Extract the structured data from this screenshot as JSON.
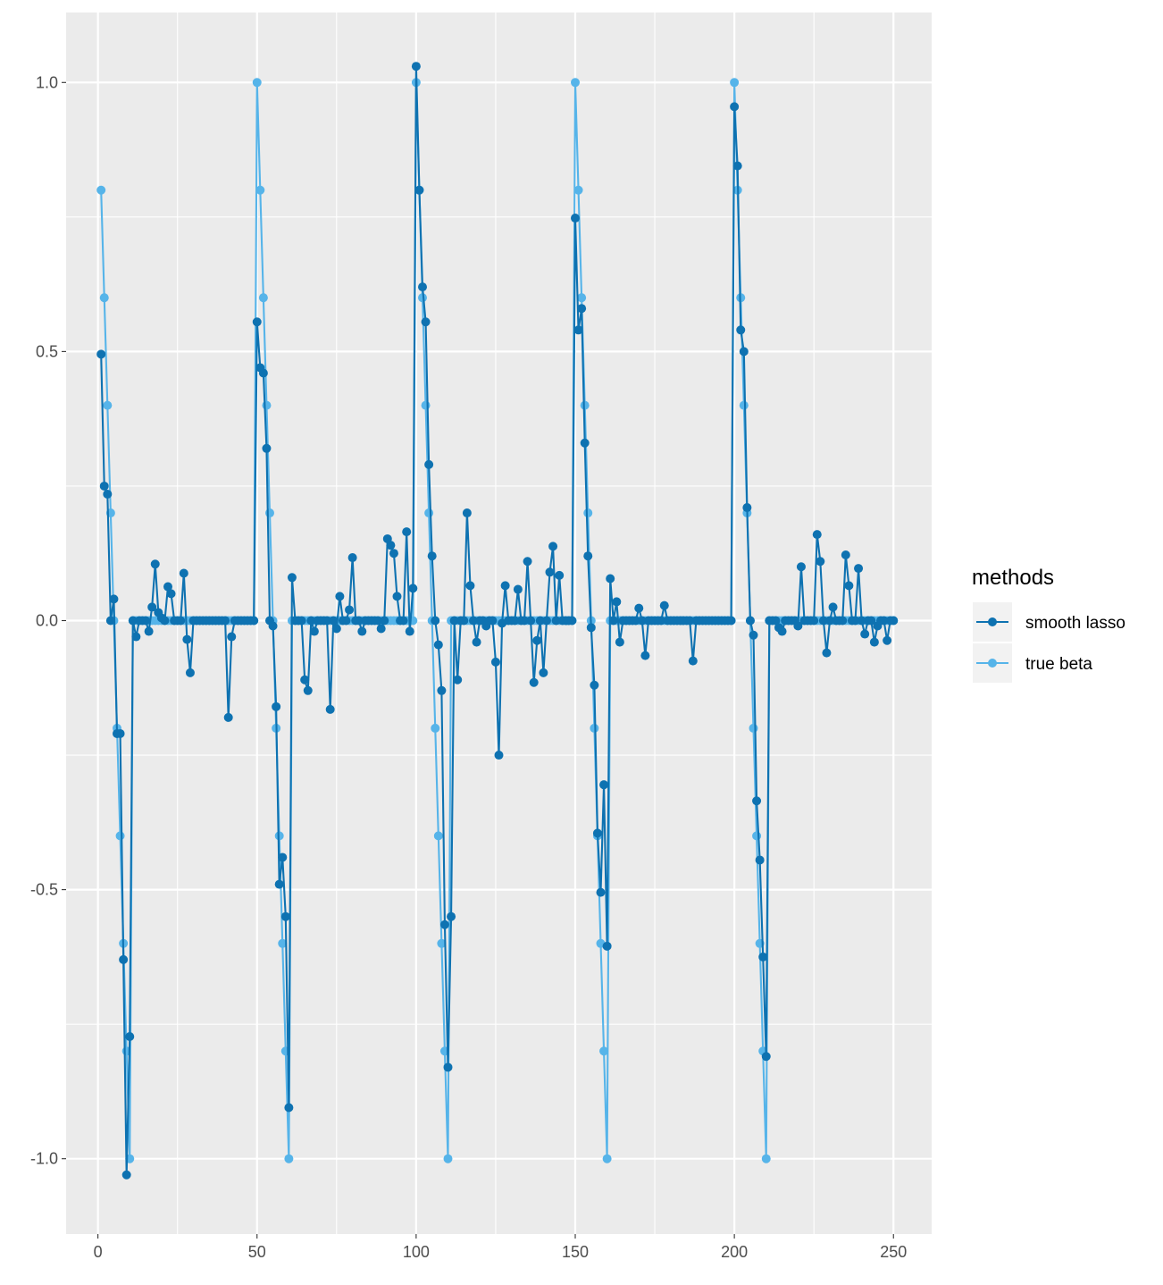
{
  "chart_data": {
    "type": "line",
    "title": "",
    "xlabel": "",
    "ylabel": "",
    "xlim": [
      -10,
      262
    ],
    "ylim": [
      -1.14,
      1.13
    ],
    "x_ticks": [
      0,
      50,
      100,
      150,
      200,
      250
    ],
    "x_tick_labels": [
      "0",
      "50",
      "100",
      "150",
      "200",
      "250"
    ],
    "y_ticks": [
      -1.0,
      -0.5,
      0.0,
      0.5,
      1.0
    ],
    "y_tick_labels": [
      "-1.0",
      "-0.5",
      "0.0",
      "0.5",
      "1.0"
    ],
    "grid": true,
    "legend": {
      "title": "methods",
      "position": "right"
    },
    "series": [
      {
        "name": "smooth lasso",
        "color": "#0E72B1",
        "nonzero": {
          "1": 0.495,
          "2": 0.25,
          "3": 0.235,
          "4": 0.0,
          "5": 0.04,
          "6": -0.21,
          "7": -0.21,
          "8": -0.63,
          "9": -1.03,
          "10": -0.773,
          "12": -0.03,
          "13": 0.0,
          "14": 0.0,
          "16": -0.02,
          "17": 0.025,
          "18": 0.105,
          "19": 0.015,
          "20": 0.005,
          "22": 0.063,
          "23": 0.05,
          "27": 0.088,
          "28": -0.035,
          "29": -0.097,
          "41": -0.18,
          "42": -0.03,
          "50": 0.555,
          "51": 0.47,
          "52": 0.46,
          "53": 0.32,
          "54": 0.0,
          "55": -0.01,
          "56": -0.16,
          "57": -0.49,
          "58": -0.44,
          "59": -0.55,
          "60": -0.905,
          "61": 0.08,
          "65": -0.11,
          "66": -0.13,
          "67": 0.0,
          "68": -0.02,
          "73": -0.165,
          "74": 0.0,
          "75": -0.015,
          "76": 0.045,
          "79": 0.02,
          "80": 0.117,
          "83": -0.02,
          "84": 0.0,
          "89": -0.015,
          "91": 0.152,
          "92": 0.14,
          "93": 0.125,
          "94": 0.045,
          "97": 0.165,
          "98": -0.02,
          "99": 0.06,
          "100": 1.03,
          "101": 0.8,
          "102": 0.62,
          "103": 0.555,
          "104": 0.29,
          "105": 0.12,
          "106": 0.0,
          "107": -0.045,
          "108": -0.13,
          "109": -0.565,
          "110": -0.83,
          "111": -0.55,
          "113": -0.11,
          "114": 0.0,
          "116": 0.2,
          "117": 0.065,
          "119": -0.04,
          "122": -0.01,
          "125": -0.077,
          "126": -0.25,
          "127": -0.005,
          "128": 0.065,
          "132": 0.058,
          "135": 0.11,
          "137": -0.115,
          "138": -0.037,
          "140": -0.097,
          "142": 0.09,
          "143": 0.138,
          "145": 0.084,
          "150": 0.748,
          "151": 0.54,
          "152": 0.58,
          "153": 0.33,
          "154": 0.12,
          "155": -0.013,
          "156": -0.12,
          "157": -0.395,
          "158": -0.505,
          "159": -0.305,
          "160": -0.605,
          "161": 0.078,
          "163": 0.035,
          "164": -0.04,
          "170": 0.023,
          "172": -0.065,
          "178": 0.028,
          "187": -0.075,
          "200": 0.955,
          "201": 0.845,
          "202": 0.54,
          "203": 0.5,
          "204": 0.21,
          "205": 0.0,
          "206": -0.027,
          "207": -0.335,
          "208": -0.445,
          "209": -0.625,
          "210": -0.81,
          "214": -0.013,
          "215": -0.02,
          "220": -0.01,
          "221": 0.1,
          "226": 0.16,
          "227": 0.11,
          "229": -0.06,
          "231": 0.025,
          "235": 0.122,
          "236": 0.065,
          "239": 0.097,
          "241": -0.025,
          "244": -0.04,
          "245": -0.01,
          "248": -0.037
        }
      },
      {
        "name": "true beta",
        "color": "#56B4E9",
        "nonzero": {
          "1": 0.8,
          "2": 0.6,
          "3": 0.4,
          "4": 0.2,
          "5": 0.0,
          "6": -0.2,
          "7": -0.4,
          "8": -0.6,
          "9": -0.8,
          "10": -1.0,
          "50": 1.0,
          "51": 0.8,
          "52": 0.6,
          "53": 0.4,
          "54": 0.2,
          "55": 0.0,
          "56": -0.2,
          "57": -0.4,
          "58": -0.6,
          "59": -0.8,
          "60": -1.0,
          "100": 1.0,
          "101": 0.8,
          "102": 0.6,
          "103": 0.4,
          "104": 0.2,
          "105": 0.0,
          "106": -0.2,
          "107": -0.4,
          "108": -0.6,
          "109": -0.8,
          "110": -1.0,
          "150": 1.0,
          "151": 0.8,
          "152": 0.6,
          "153": 0.4,
          "154": 0.2,
          "155": 0.0,
          "156": -0.2,
          "157": -0.4,
          "158": -0.6,
          "159": -0.8,
          "160": -1.0,
          "200": 1.0,
          "201": 0.8,
          "202": 0.6,
          "203": 0.4,
          "204": 0.2,
          "205": 0.0,
          "206": -0.2,
          "207": -0.4,
          "208": -0.6,
          "209": -0.8,
          "210": -1.0
        }
      }
    ],
    "index_range": [
      1,
      250
    ],
    "default_value": 0.0
  }
}
